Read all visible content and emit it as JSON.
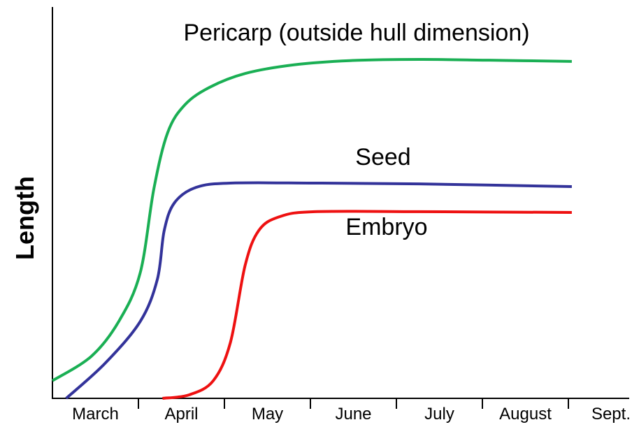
{
  "chart_data": {
    "type": "line",
    "y_label": "Length",
    "categories": [
      "March",
      "April",
      "May",
      "June",
      "July",
      "August",
      "Sept."
    ],
    "xlim": [
      0,
      6.7
    ],
    "ylim": [
      0,
      100
    ],
    "series": [
      {
        "name": "Pericarp (outside hull dimension)",
        "color": "#1aaf54",
        "x": [
          0,
          0.45,
          0.77,
          1.02,
          1.18,
          1.34,
          1.54,
          1.83,
          2.24,
          2.8,
          3.46,
          4.27,
          5.08,
          6.04
        ],
        "values": [
          4.5,
          10.7,
          19.6,
          32,
          53.6,
          67.9,
          75,
          79.5,
          83,
          85.2,
          86.3,
          86.6,
          86.4,
          86.1
        ]
      },
      {
        "name": "Seed",
        "color": "#33339a",
        "x": [
          0.16,
          0.61,
          1.02,
          1.22,
          1.3,
          1.42,
          1.67,
          2.07,
          3.05,
          4.27,
          6.04
        ],
        "values": [
          0,
          8.9,
          19.6,
          30.4,
          42.9,
          50,
          53.9,
          55,
          55,
          54.8,
          54.1
        ]
      },
      {
        "name": "Embryo",
        "color": "#ee1111",
        "x": [
          1.28,
          1.59,
          1.87,
          2.07,
          2.24,
          2.4,
          2.64,
          3.05,
          4.27,
          6.04
        ],
        "values": [
          0,
          0.9,
          4.5,
          14.3,
          33.9,
          42.9,
          46.4,
          47.7,
          47.7,
          47.5
        ]
      }
    ]
  }
}
